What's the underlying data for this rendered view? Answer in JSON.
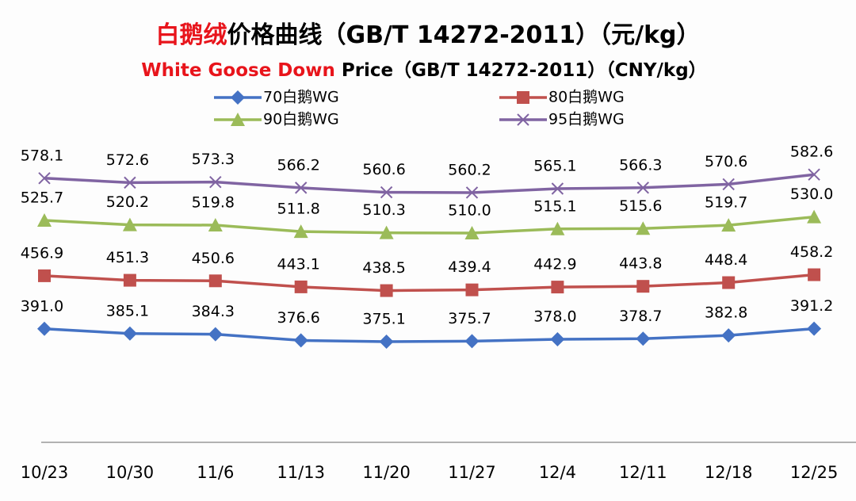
{
  "chart_data": {
    "type": "line",
    "title": [
      "白鹅绒",
      "价格曲线（GB/T 14272-2011）（元/kg）"
    ],
    "subtitle": [
      "White Goose Down",
      " Price（GB/T 14272-2011）（CNY/kg）"
    ],
    "categories": [
      "10/23",
      "10/30",
      "11/6",
      "11/13",
      "11/20",
      "11/27",
      "12/4",
      "12/11",
      "12/18",
      "12/25"
    ],
    "ylim": [
      250,
      700
    ],
    "series": [
      {
        "name": "70白鹅WG",
        "color": "#4472c4",
        "marker": "diamond",
        "values": [
          391.0,
          385.1,
          384.3,
          376.6,
          375.1,
          375.7,
          378.0,
          378.7,
          382.8,
          391.2
        ],
        "value_labels": [
          "391.0",
          "385.1",
          "384.3",
          "376.6",
          "375.1",
          "375.7",
          "378.0",
          "378.7",
          "382.8",
          "391.2"
        ]
      },
      {
        "name": "80白鹅WG",
        "color": "#c0504d",
        "marker": "square",
        "values": [
          456.9,
          451.3,
          450.6,
          443.1,
          438.5,
          439.4,
          442.9,
          443.8,
          448.4,
          458.2
        ],
        "value_labels": [
          "456.9",
          "451.3",
          "450.6",
          "443.1",
          "438.5",
          "439.4",
          "442.9",
          "443.8",
          "448.4",
          "458.2"
        ]
      },
      {
        "name": "90白鹅WG",
        "color": "#9bbb59",
        "marker": "triangle",
        "values": [
          525.7,
          520.2,
          519.8,
          511.8,
          510.3,
          510.0,
          515.1,
          515.6,
          519.7,
          530.0
        ],
        "value_labels": [
          "525.7",
          "520.2",
          "519.8",
          "511.8",
          "510.3",
          "510.0",
          "515.1",
          "515.6",
          "519.7",
          "530.0"
        ]
      },
      {
        "name": "95白鹅WG",
        "color": "#8064a2",
        "marker": "x",
        "values": [
          578.1,
          572.6,
          573.3,
          566.2,
          560.6,
          560.2,
          565.1,
          566.3,
          570.6,
          582.6
        ],
        "value_labels": [
          "578.1",
          "572.6",
          "573.3",
          "566.2",
          "560.6",
          "560.2",
          "565.1",
          "566.3",
          "570.6",
          "582.6"
        ]
      }
    ]
  }
}
